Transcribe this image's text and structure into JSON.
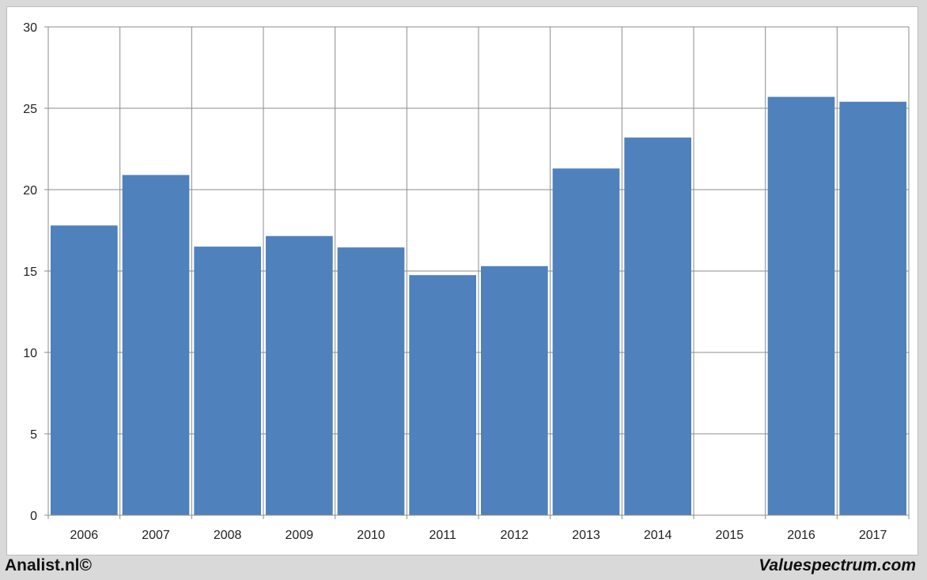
{
  "chart_data": {
    "type": "bar",
    "categories": [
      "2006",
      "2007",
      "2008",
      "2009",
      "2010",
      "2011",
      "2012",
      "2013",
      "2014",
      "2015",
      "2016",
      "2017"
    ],
    "values": [
      17.8,
      20.9,
      16.5,
      17.15,
      16.45,
      14.75,
      15.3,
      21.3,
      23.2,
      null,
      25.7,
      25.4
    ],
    "ylim": [
      0,
      30
    ],
    "yticks": [
      0,
      5,
      10,
      15,
      20,
      25,
      30
    ],
    "grid": true,
    "bar_color": "#4f81bd"
  },
  "footer": {
    "left": "Analist.nl©",
    "right": "Valuespectrum.com"
  }
}
